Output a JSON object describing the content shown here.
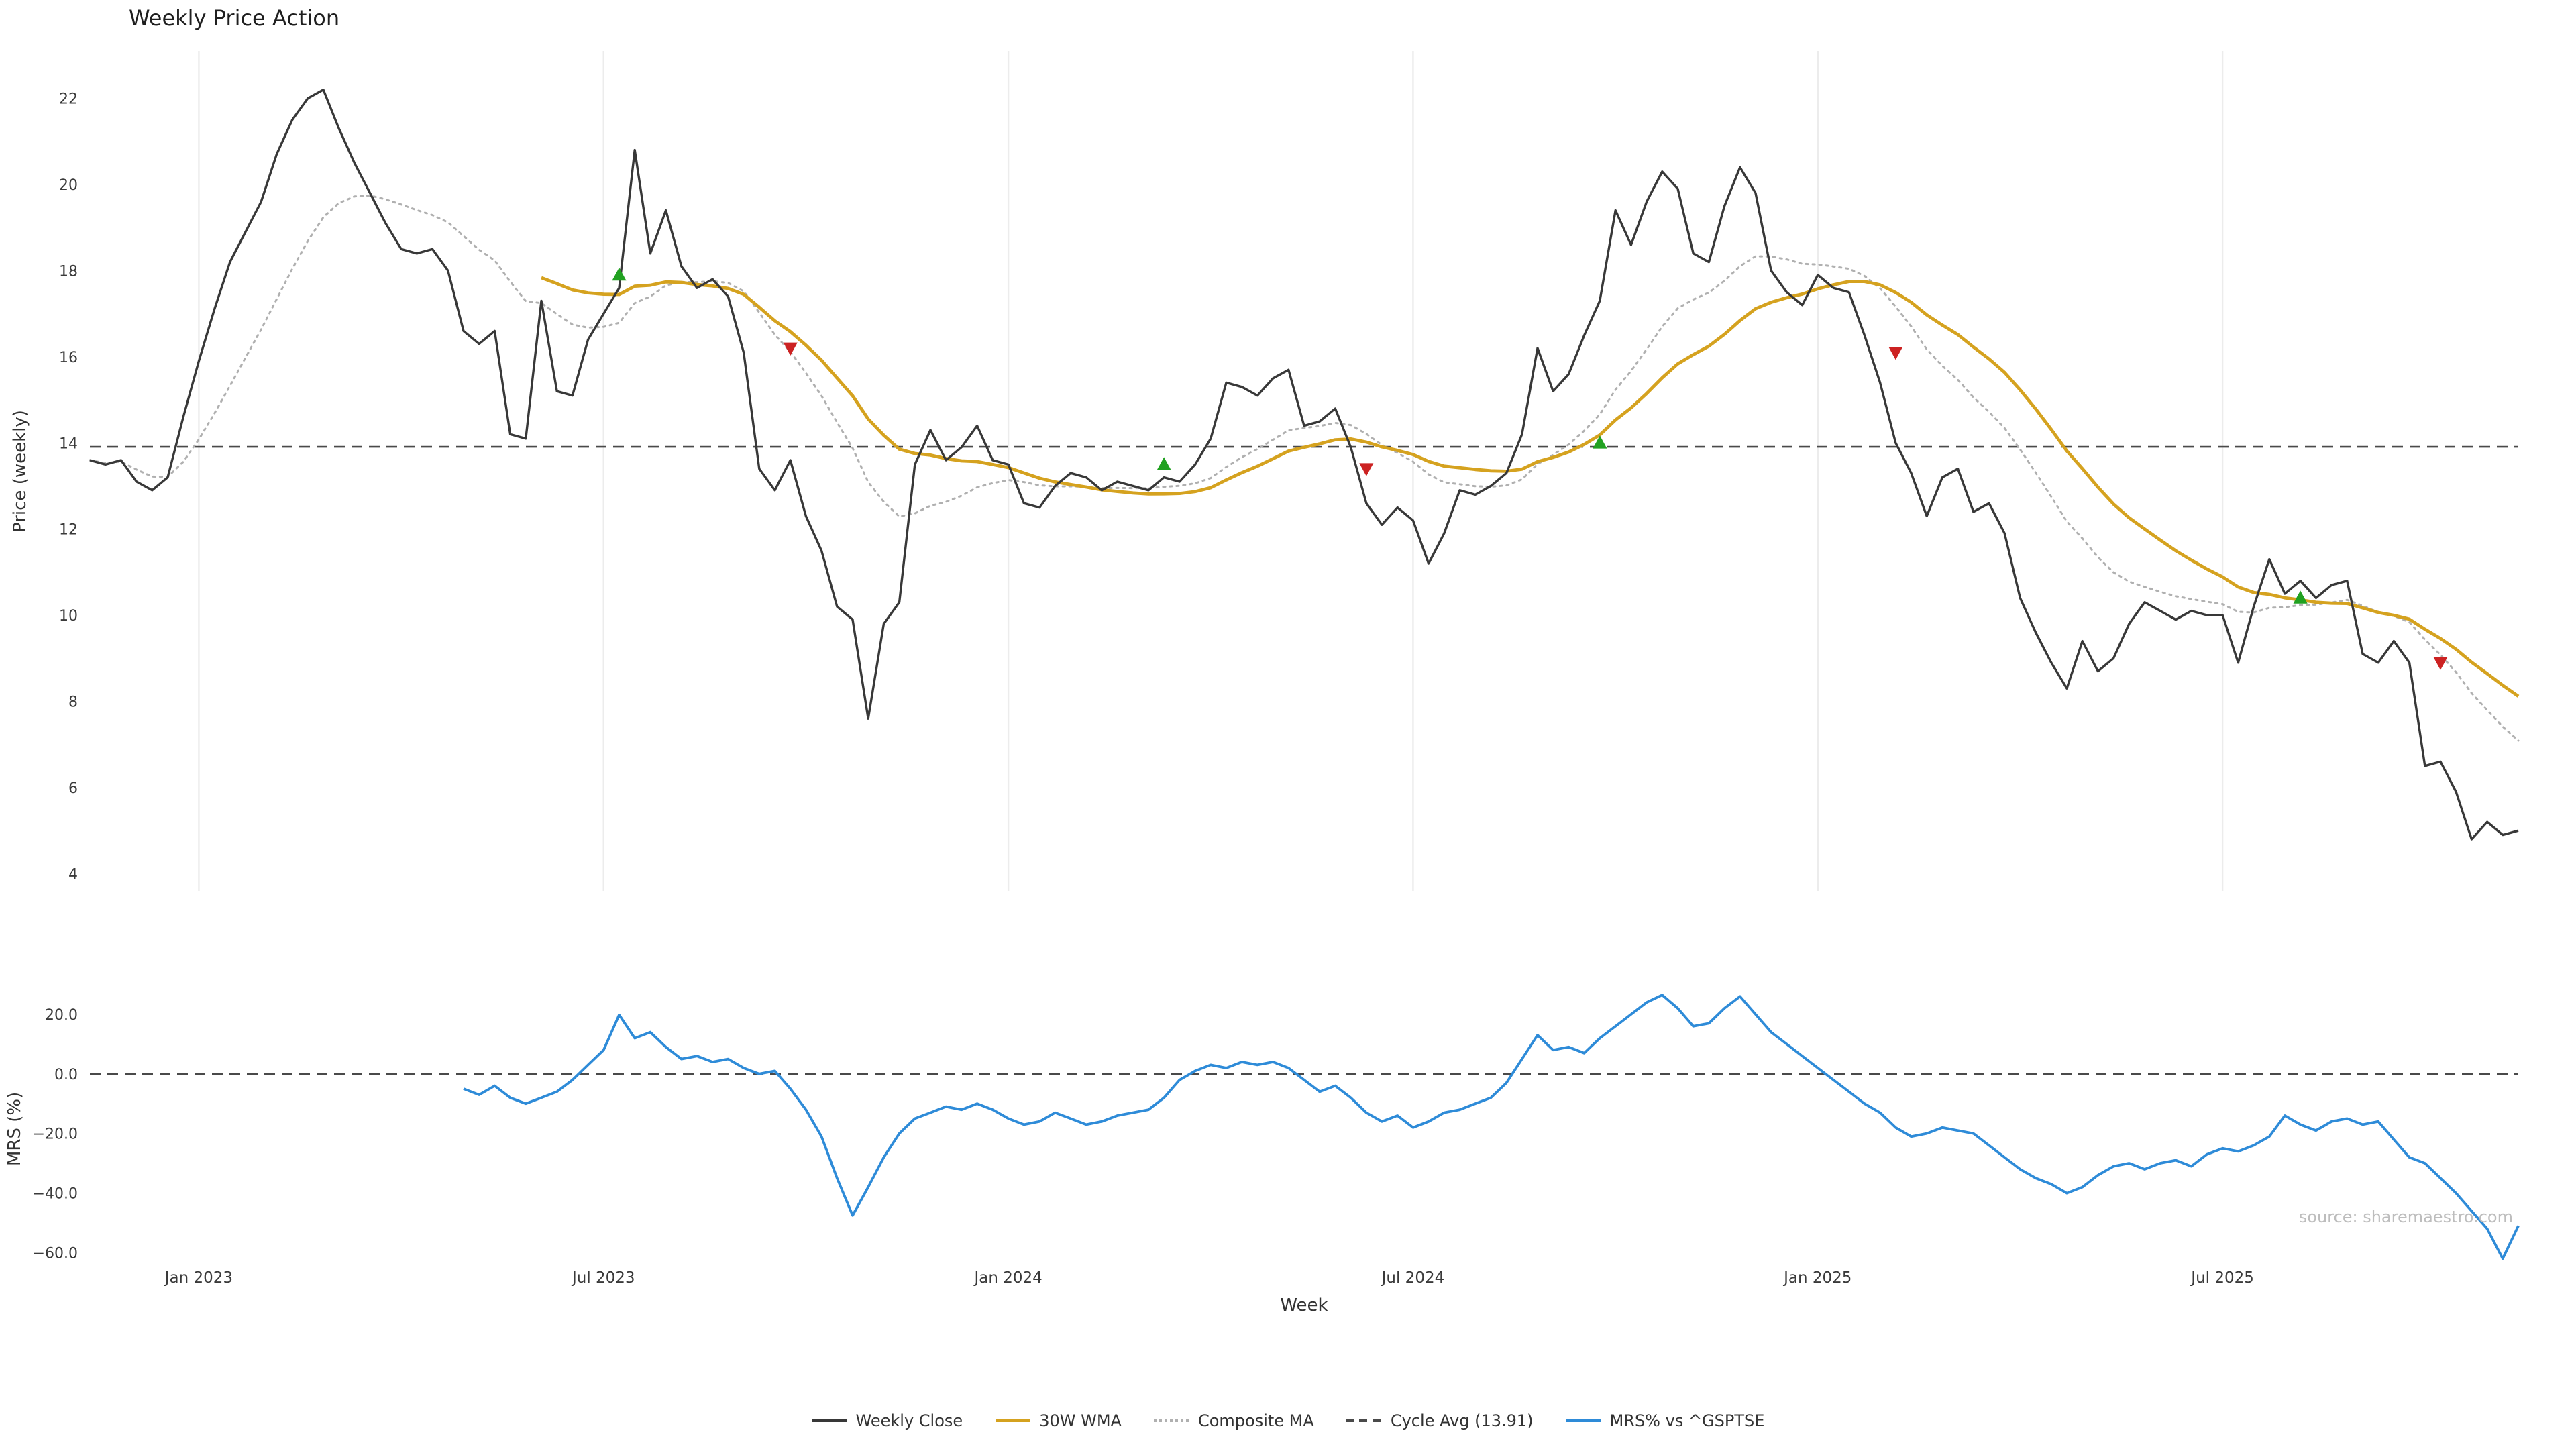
{
  "page": {
    "title": "Weekly Price Action",
    "xlabel": "Week",
    "source": "source: sharemaestro.com"
  },
  "colors": {
    "close": "#383838",
    "wma": "#d5a21f",
    "composite": "#b0b0b0",
    "cycle": "#4a4a4a",
    "mrs": "#2e8bd8",
    "buy": "#21a121",
    "sell": "#cc2222",
    "grid": "#ececec",
    "tick": "#3a3a3a"
  },
  "legend": [
    {
      "label": "Weekly Close",
      "color": "#383838",
      "style": "solid"
    },
    {
      "label": "30W WMA",
      "color": "#d5a21f",
      "style": "solid"
    },
    {
      "label": "Composite MA",
      "color": "#b0b0b0",
      "style": "dotted"
    },
    {
      "label": "Cycle Avg (13.91)",
      "color": "#4a4a4a",
      "style": "dashed"
    },
    {
      "label": "MRS% vs ^GSPTSE",
      "color": "#2e8bd8",
      "style": "solid"
    }
  ],
  "chart_data": {
    "type": "line",
    "title": "Weekly Price Action",
    "xlabel": "Week",
    "x_start_date": "2022-11-14",
    "x_interval_days": 7,
    "x_weeks": 157,
    "x_ticks": [
      {
        "label": "Jan 2023",
        "week": 7
      },
      {
        "label": "Jul 2023",
        "week": 33
      },
      {
        "label": "Jan 2024",
        "week": 59
      },
      {
        "label": "Jul 2024",
        "week": 85
      },
      {
        "label": "Jan 2025",
        "week": 111
      },
      {
        "label": "Jul 2025",
        "week": 137
      }
    ],
    "price_panel": {
      "ylabel": "Price (weekly)",
      "ylim": [
        3.6,
        23.1
      ],
      "yticks": [
        4,
        6,
        8,
        10,
        12,
        14,
        16,
        18,
        20,
        22
      ],
      "cycle_avg": 13.91,
      "wma_window": 30,
      "composite_windows": [
        10,
        20,
        30
      ],
      "series_names": {
        "close": "Weekly Close",
        "wma": "30W WMA",
        "composite": "Composite MA",
        "cycle": "Cycle Avg (13.91)"
      },
      "weekly_close": [
        13.6,
        13.5,
        13.6,
        13.1,
        12.9,
        13.2,
        14.6,
        15.9,
        17.1,
        18.2,
        18.9,
        19.6,
        20.7,
        21.5,
        22.0,
        22.2,
        21.3,
        20.5,
        19.8,
        19.1,
        18.5,
        18.4,
        18.5,
        18.0,
        16.6,
        16.3,
        16.6,
        14.2,
        14.1,
        17.3,
        15.2,
        15.1,
        16.4,
        17.0,
        17.6,
        20.8,
        18.4,
        19.4,
        18.1,
        17.6,
        17.8,
        17.4,
        16.1,
        13.4,
        12.9,
        13.6,
        12.3,
        11.5,
        10.2,
        9.9,
        7.6,
        9.8,
        10.3,
        13.5,
        14.3,
        13.6,
        13.9,
        14.4,
        13.6,
        13.5,
        12.6,
        12.5,
        13.0,
        13.3,
        13.2,
        12.9,
        13.1,
        13.0,
        12.9,
        13.2,
        13.1,
        13.5,
        14.1,
        15.4,
        15.3,
        15.1,
        15.5,
        15.7,
        14.4,
        14.5,
        14.8,
        13.9,
        12.6,
        12.1,
        12.5,
        12.2,
        11.2,
        11.9,
        12.9,
        12.8,
        13.0,
        13.3,
        14.2,
        16.2,
        15.2,
        15.6,
        16.5,
        17.3,
        19.4,
        18.6,
        19.6,
        20.3,
        19.9,
        18.4,
        18.2,
        19.5,
        20.4,
        19.8,
        18.0,
        17.5,
        17.2,
        17.9,
        17.6,
        17.5,
        16.5,
        15.4,
        14.0,
        13.3,
        12.3,
        13.2,
        13.4,
        12.4,
        12.6,
        11.9,
        10.4,
        9.6,
        8.9,
        8.3,
        9.4,
        8.7,
        9.0,
        9.8,
        10.3,
        10.1,
        9.9,
        10.1,
        10.0,
        10.0,
        8.9,
        10.2,
        11.3,
        10.5,
        10.8,
        10.4,
        10.7,
        10.8,
        9.1,
        8.9,
        9.4,
        8.9,
        6.5,
        6.6,
        5.9,
        4.8,
        5.2,
        4.9,
        5.0
      ],
      "signals": [
        {
          "week": 34,
          "value": 17.9,
          "type": "buy"
        },
        {
          "week": 45,
          "value": 16.2,
          "type": "sell"
        },
        {
          "week": 69,
          "value": 13.5,
          "type": "buy"
        },
        {
          "week": 82,
          "value": 13.4,
          "type": "sell"
        },
        {
          "week": 97,
          "value": 14.0,
          "type": "buy"
        },
        {
          "week": 116,
          "value": 16.1,
          "type": "sell"
        },
        {
          "week": 142,
          "value": 10.4,
          "type": "buy"
        },
        {
          "week": 151,
          "value": 8.9,
          "type": "sell"
        }
      ]
    },
    "mrs_panel": {
      "ylabel": "MRS (%)",
      "series_name": "MRS% vs ^GSPTSE",
      "ylim": [
        -66,
        29
      ],
      "yticks": [
        20,
        0,
        -20,
        -40,
        -60
      ],
      "zero_line": 0,
      "start_week": 24,
      "values": [
        -5,
        -7,
        -4,
        -8,
        -10,
        -8,
        -6,
        -2,
        3,
        8,
        19.8,
        12,
        14,
        9,
        5,
        6,
        4,
        5,
        2,
        0,
        1,
        -5,
        -12,
        -21,
        -35,
        -47.5,
        -38,
        -28,
        -20,
        -15,
        -13,
        -11,
        -12,
        -10,
        -12,
        -15,
        -17,
        -16,
        -13,
        -15,
        -17,
        -16,
        -14,
        -13,
        -12,
        -8,
        -2,
        1,
        3,
        2,
        4,
        3,
        4,
        2,
        -2,
        -6,
        -4,
        -8,
        -13,
        -16,
        -14,
        -18,
        -16,
        -13,
        -12,
        -10,
        -8,
        -3,
        5,
        13,
        8,
        9,
        7,
        12,
        16,
        20,
        24,
        26.5,
        22,
        16,
        17,
        22,
        26,
        20,
        14,
        10,
        6,
        2,
        -2,
        -6,
        -10,
        -13,
        -18,
        -21,
        -20,
        -18,
        -19,
        -20,
        -24,
        -28,
        -32,
        -35,
        -37,
        -40,
        -38,
        -34,
        -31,
        -30,
        -32,
        -30,
        -29,
        -31,
        -27,
        -25,
        -26,
        -24,
        -21,
        -14,
        -17,
        -19,
        -16,
        -15,
        -17,
        -16,
        -22,
        -28,
        -30,
        -35,
        -40,
        -46,
        -52,
        -62,
        -51
      ]
    }
  }
}
